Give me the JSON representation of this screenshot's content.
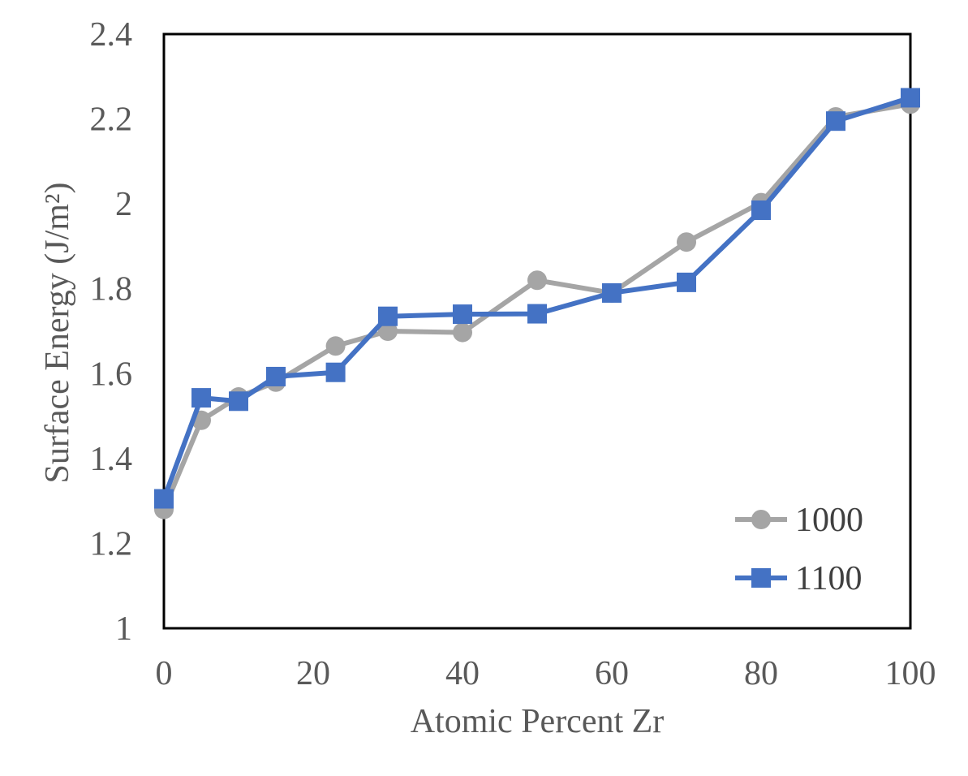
{
  "chart_data": {
    "type": "line",
    "xlabel": "Atomic Percent Zr",
    "ylabel": "Surface Energy (J/m²)",
    "xlim": [
      0,
      100
    ],
    "ylim": [
      1,
      2.4
    ],
    "xticks": [
      0,
      20,
      40,
      60,
      80,
      100
    ],
    "yticks": [
      1,
      1.2,
      1.4,
      1.6,
      1.8,
      2,
      2.2,
      2.4
    ],
    "xtick_labels": [
      "0",
      "20",
      "40",
      "60",
      "80",
      "100"
    ],
    "ytick_labels": [
      "1",
      "1.2",
      "1.4",
      "1.6",
      "1.8",
      "2",
      "2.2",
      "2.4"
    ],
    "grid": false,
    "legend_position": "bottom-right",
    "series": [
      {
        "name": "1000",
        "color": "#a5a5a5",
        "marker": "circle",
        "x": [
          0,
          5,
          10,
          15,
          23,
          30,
          40,
          50,
          60,
          70,
          80,
          90,
          100
        ],
        "y": [
          1.28,
          1.49,
          1.545,
          1.58,
          1.665,
          1.7,
          1.697,
          1.82,
          1.79,
          1.91,
          2.003,
          2.205,
          2.235
        ]
      },
      {
        "name": "1100",
        "color": "#4472c4",
        "marker": "square",
        "x": [
          0,
          5,
          10,
          15,
          23,
          30,
          40,
          50,
          60,
          70,
          80,
          90,
          100
        ],
        "y": [
          1.305,
          1.543,
          1.535,
          1.593,
          1.603,
          1.735,
          1.74,
          1.741,
          1.79,
          1.815,
          1.985,
          2.195,
          2.25
        ]
      }
    ]
  }
}
